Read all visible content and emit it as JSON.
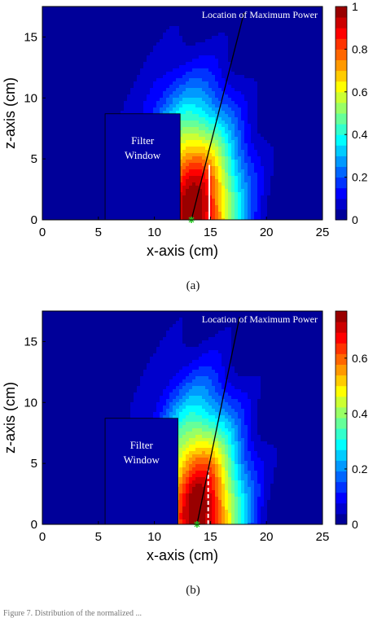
{
  "chart_data": [
    {
      "type": "heatmap",
      "panel_label": "(a)",
      "xlabel": "x-axis (cm)",
      "ylabel": "z-axis (cm)",
      "xlim": [
        0,
        25
      ],
      "ylim": [
        0,
        17.5
      ],
      "xticks": [
        0,
        5,
        10,
        15,
        20,
        25
      ],
      "yticks": [
        0,
        5,
        10,
        15
      ],
      "colorbar": {
        "min": 0,
        "max": 1,
        "ticks": [
          "0",
          "0.2",
          "0.4",
          "0.6",
          "0.8",
          "1"
        ],
        "tick_values": [
          0,
          0.2,
          0.4,
          0.6,
          0.8,
          1.0
        ],
        "levels": 20,
        "colormap": "jet"
      },
      "field": {
        "peak_x": 13.5,
        "peak_z": 0.8,
        "peak_value": 1.0,
        "spread_x": 4.6,
        "spread_z": 10.5
      },
      "filter_window": {
        "label_line1": "Filter",
        "label_line2": "Window",
        "x0": 5.6,
        "x1": 12.3,
        "z0": 0,
        "z1": 8.7
      },
      "max_power_line": {
        "label": "Location of Maximum Power",
        "x0": 13.3,
        "z0": 0,
        "x1": 18.0,
        "z1": 17.0
      },
      "marker": {
        "x": 13.3,
        "z": 0
      },
      "white_line": {
        "x": 14.9,
        "z0": 0,
        "z1": 4.5,
        "style": "solid"
      }
    },
    {
      "type": "heatmap",
      "panel_label": "(b)",
      "xlabel": "x-axis (cm)",
      "ylabel": "z-axis (cm)",
      "xlim": [
        0,
        25
      ],
      "ylim": [
        0,
        17.5
      ],
      "xticks": [
        0,
        5,
        10,
        15,
        20,
        25
      ],
      "yticks": [
        0,
        5,
        10,
        15
      ],
      "colorbar": {
        "min": 0,
        "max": 0.77,
        "ticks": [
          "0",
          "0.2",
          "0.4",
          "0.6"
        ],
        "tick_values": [
          0,
          0.2,
          0.4,
          0.6
        ],
        "levels": 20,
        "colormap": "jet"
      },
      "field": {
        "peak_x": 14.0,
        "peak_z": 0.9,
        "peak_value": 0.77,
        "spread_x": 4.3,
        "spread_z": 10.8
      },
      "filter_window": {
        "label_line1": "Filter",
        "label_line2": "Window",
        "x0": 5.6,
        "x1": 12.1,
        "z0": 0,
        "z1": 8.7
      },
      "max_power_line": {
        "label": "Location of Maximum Power",
        "x0": 13.8,
        "z0": 0,
        "x1": 17.6,
        "z1": 17.0
      },
      "marker": {
        "x": 13.8,
        "z": 0
      },
      "white_line": {
        "x": 14.8,
        "z0": 0,
        "z1": 4.5,
        "style": "dashed"
      }
    }
  ],
  "colors": {
    "marker": "#22cc22",
    "window": "#0000a6",
    "line": "#000000",
    "white_line": "#ffffff"
  },
  "footnote": "Figure 7. Distribution of the normalized ..."
}
